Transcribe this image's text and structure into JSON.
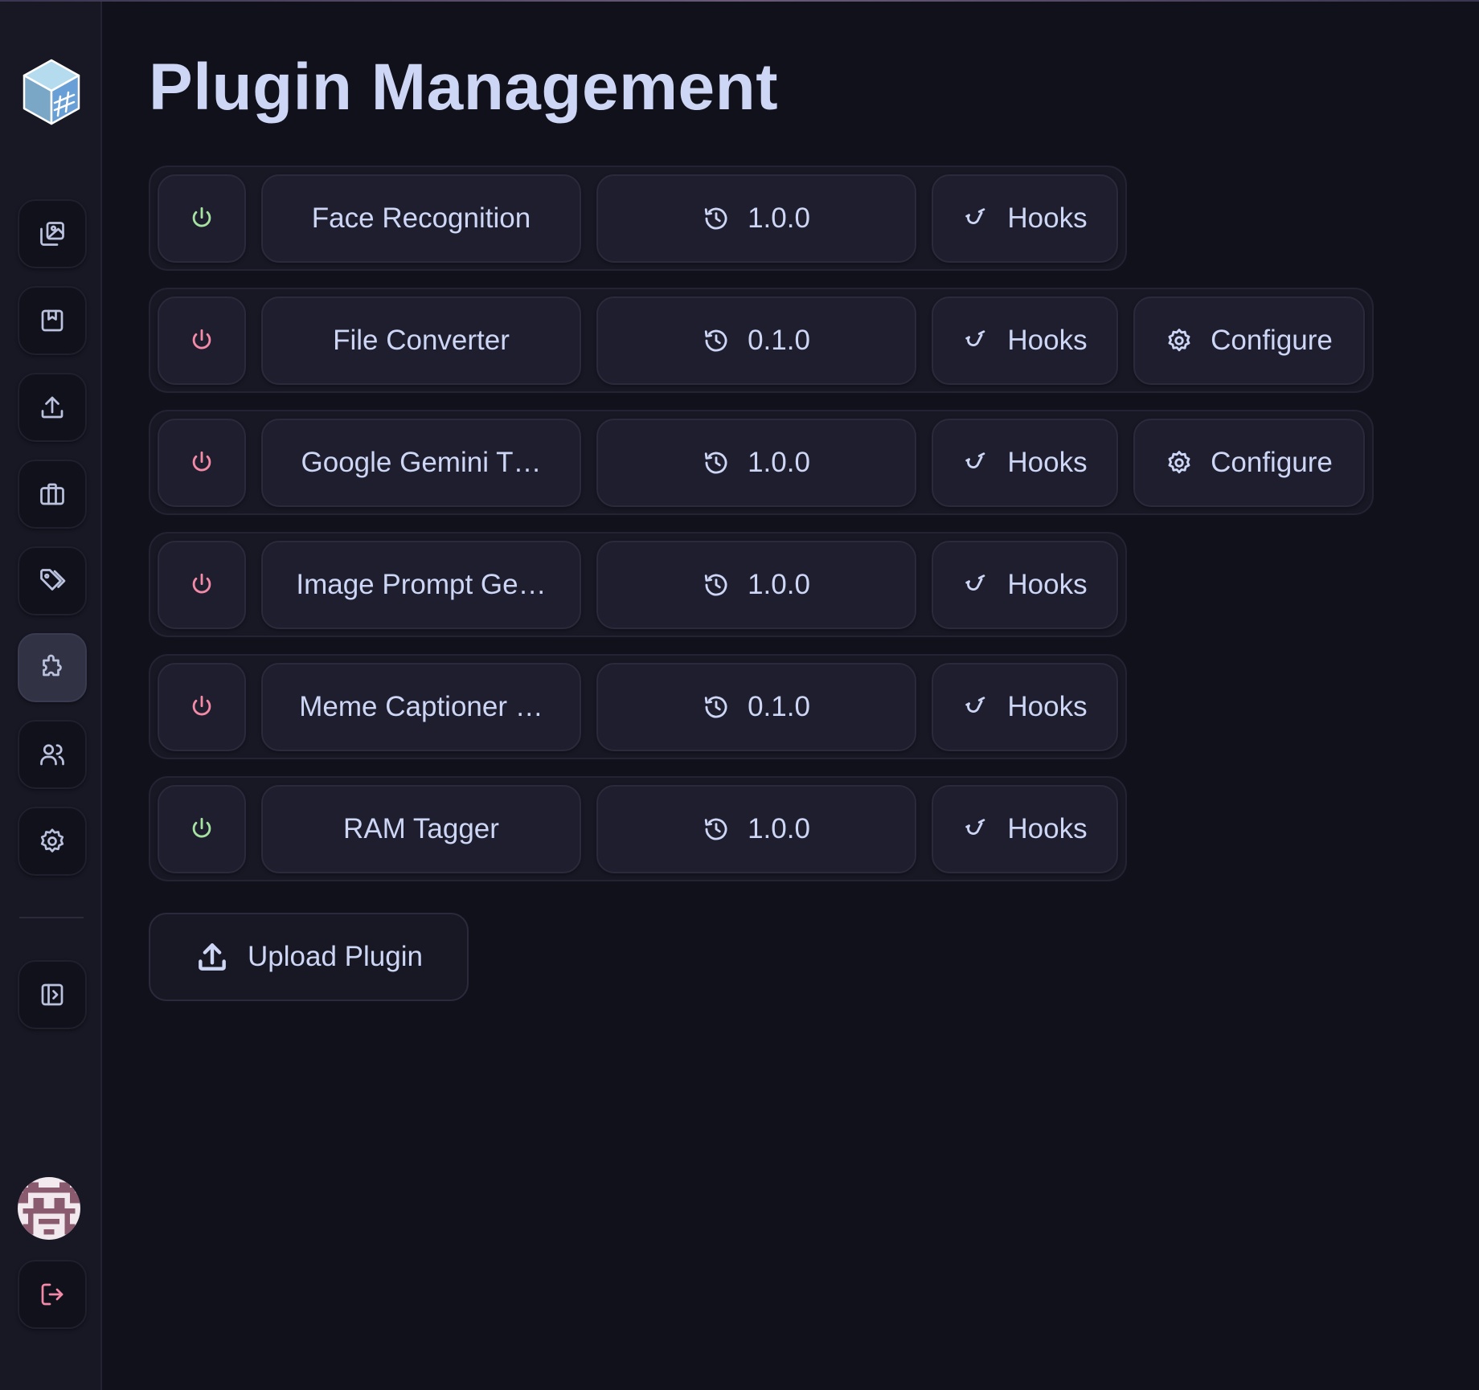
{
  "page": {
    "title": "Plugin Management"
  },
  "colors": {
    "enabled": "#a6e3a1",
    "disabled": "#f38ba8",
    "background": "#11111b",
    "sidebar": "#181825",
    "button": "#1e1e2e",
    "text": "#cdd6f4"
  },
  "sidebar": {
    "items": [
      {
        "name": "gallery",
        "icon": "images-icon"
      },
      {
        "name": "saved",
        "icon": "bookmark-icon"
      },
      {
        "name": "upload",
        "icon": "upload-icon"
      },
      {
        "name": "collections",
        "icon": "briefcase-icon"
      },
      {
        "name": "tags",
        "icon": "tags-icon"
      },
      {
        "name": "plugins",
        "icon": "puzzle-icon",
        "active": true
      },
      {
        "name": "users",
        "icon": "users-icon"
      },
      {
        "name": "settings",
        "icon": "gear-icon"
      }
    ],
    "collapse_icon": "sidebar-expand-icon",
    "logout_icon": "logout-icon"
  },
  "plugins": [
    {
      "name": "Face Recognition",
      "version": "1.0.0",
      "enabled": true,
      "hooks_label": "Hooks"
    },
    {
      "name": "File Converter",
      "version": "0.1.0",
      "enabled": false,
      "hooks_label": "Hooks",
      "configure_label": "Configure"
    },
    {
      "name": "Google Gemini T…",
      "version": "1.0.0",
      "enabled": false,
      "hooks_label": "Hooks",
      "configure_label": "Configure"
    },
    {
      "name": "Image Prompt Ge…",
      "version": "1.0.0",
      "enabled": false,
      "hooks_label": "Hooks"
    },
    {
      "name": "Meme Captioner …",
      "version": "0.1.0",
      "enabled": false,
      "hooks_label": "Hooks"
    },
    {
      "name": "RAM Tagger",
      "version": "1.0.0",
      "enabled": true,
      "hooks_label": "Hooks"
    }
  ],
  "upload": {
    "label": "Upload Plugin"
  }
}
